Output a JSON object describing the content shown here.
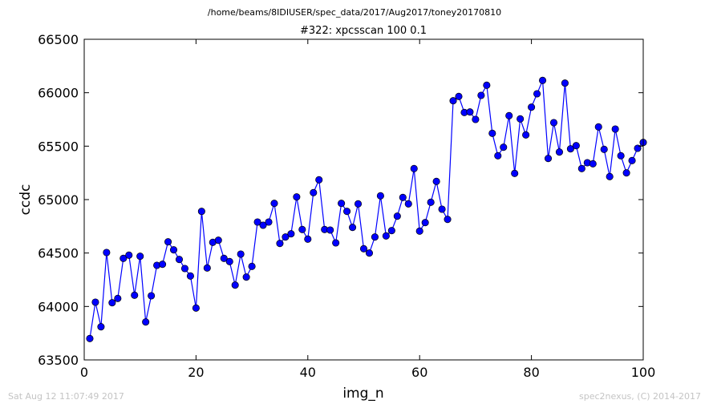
{
  "figure": {
    "suptitle": "/home/beams/8IDIUSER/spec_data/2017/Aug2017/toney20170810",
    "footer_left": "Sat Aug 12 11:07:49 2017",
    "footer_right": "spec2nexus, (C) 2014-2017"
  },
  "chart_data": {
    "type": "line",
    "title": "#322: xpcsscan 100 0.1",
    "xlabel": "img_n",
    "ylabel": "ccdc",
    "xlim": [
      0,
      100
    ],
    "ylim": [
      63500,
      66500
    ],
    "xticks": [
      "0",
      "20",
      "40",
      "60",
      "80",
      "100"
    ],
    "yticks": [
      "63500",
      "64000",
      "64500",
      "65000",
      "65500",
      "66000",
      "66500"
    ],
    "grid": false,
    "series_color": "#0000ff",
    "marker": "circle",
    "x": [
      1,
      2,
      3,
      4,
      5,
      6,
      7,
      8,
      9,
      10,
      11,
      12,
      13,
      14,
      15,
      16,
      17,
      18,
      19,
      20,
      21,
      22,
      23,
      24,
      25,
      26,
      27,
      28,
      29,
      30,
      31,
      32,
      33,
      34,
      35,
      36,
      37,
      38,
      39,
      40,
      41,
      42,
      43,
      44,
      45,
      46,
      47,
      48,
      49,
      50,
      51,
      52,
      53,
      54,
      55,
      56,
      57,
      58,
      59,
      60,
      61,
      62,
      63,
      64,
      65,
      66,
      67,
      68,
      69,
      70,
      71,
      72,
      73,
      74,
      75,
      76,
      77,
      78,
      79,
      80,
      81,
      82,
      83,
      84,
      85,
      86,
      87,
      88,
      89,
      90,
      91,
      92,
      93,
      94,
      95,
      96,
      97,
      98,
      99,
      100
    ],
    "y": [
      63700,
      64040,
      63810,
      64505,
      64035,
      64075,
      64450,
      64480,
      64105,
      64470,
      63855,
      64100,
      64385,
      64395,
      64605,
      64530,
      64440,
      64355,
      64285,
      63985,
      64890,
      64360,
      64600,
      64620,
      64450,
      64420,
      64200,
      64490,
      64275,
      64375,
      64790,
      64760,
      64790,
      64965,
      64590,
      64650,
      64680,
      65025,
      64720,
      64630,
      65065,
      65185,
      64720,
      64715,
      64595,
      64965,
      64890,
      64740,
      64960,
      64540,
      64500,
      64650,
      65035,
      64660,
      64710,
      64845,
      65020,
      64960,
      65290,
      64705,
      64785,
      64975,
      65170,
      64910,
      64815,
      65925,
      65965,
      65815,
      65820,
      65750,
      65975,
      66070,
      65620,
      65410,
      65490,
      65785,
      65245,
      65755,
      65605,
      65865,
      65990,
      66115,
      65385,
      65720,
      65445,
      66090,
      65475,
      65505,
      65290,
      65345,
      65335,
      65680,
      65470,
      65215,
      65660,
      65410,
      65250,
      65365,
      65480,
      65535
    ]
  }
}
